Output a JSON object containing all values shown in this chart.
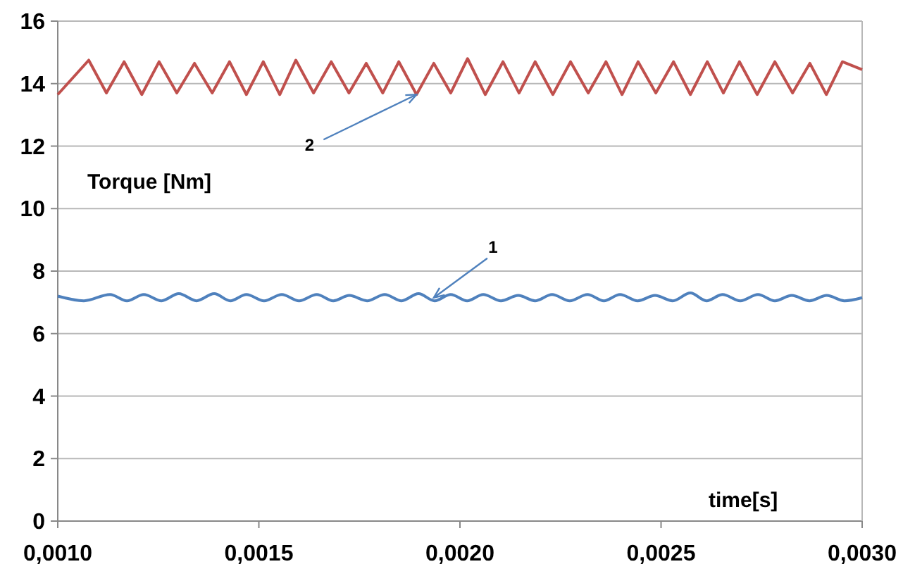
{
  "chart_data": {
    "type": "line",
    "ylabel": "Torque [Nm]",
    "xlabel": "time[s]",
    "xlim": [
      0.001,
      0.003
    ],
    "ylim": [
      0,
      16
    ],
    "xticks": [
      {
        "value": 0.001,
        "label": "0,0010"
      },
      {
        "value": 0.0015,
        "label": "0,0015"
      },
      {
        "value": 0.002,
        "label": "0,0020"
      },
      {
        "value": 0.0025,
        "label": "0,0025"
      },
      {
        "value": 0.003,
        "label": "0,0030"
      }
    ],
    "yticks": [
      0,
      2,
      4,
      6,
      8,
      10,
      12,
      14,
      16
    ],
    "grid": "y",
    "line_style": "solid",
    "marker": "none",
    "series": [
      {
        "color": "#c0504d",
        "x": [
          0.001,
          0.001077,
          0.001121,
          0.001165,
          0.001209,
          0.001252,
          0.001296,
          0.00134,
          0.001384,
          0.001427,
          0.001469,
          0.001511,
          0.001552,
          0.001592,
          0.001636,
          0.00168,
          0.001724,
          0.001767,
          0.001808,
          0.001848,
          0.001892,
          0.001935,
          0.001977,
          0.002019,
          0.002063,
          0.002107,
          0.002147,
          0.002187,
          0.002231,
          0.002275,
          0.002319,
          0.002363,
          0.002403,
          0.002443,
          0.002487,
          0.002531,
          0.002573,
          0.002615,
          0.002655,
          0.002695,
          0.002739,
          0.002783,
          0.002827,
          0.00287,
          0.002911,
          0.002951,
          0.003
        ],
        "values": [
          13.65,
          14.75,
          13.7,
          14.7,
          13.65,
          14.7,
          13.7,
          14.65,
          13.7,
          14.7,
          13.65,
          14.7,
          13.65,
          14.75,
          13.7,
          14.7,
          13.7,
          14.65,
          13.7,
          14.7,
          13.65,
          14.65,
          13.7,
          14.8,
          13.65,
          14.7,
          13.7,
          14.7,
          13.65,
          14.7,
          13.7,
          14.7,
          13.65,
          14.7,
          13.7,
          14.7,
          13.65,
          14.7,
          13.7,
          14.7,
          13.65,
          14.7,
          13.7,
          14.65,
          13.65,
          14.7,
          14.45
        ]
      },
      {
        "color": "#4f81bd",
        "x": [
          0.001,
          0.001065,
          0.00113,
          0.001172,
          0.001214,
          0.001258,
          0.001301,
          0.001345,
          0.001389,
          0.001429,
          0.001469,
          0.001513,
          0.001557,
          0.0016,
          0.001644,
          0.001685,
          0.001725,
          0.001769,
          0.001813,
          0.001855,
          0.001897,
          0.001937,
          0.001977,
          0.002018,
          0.002058,
          0.002102,
          0.002145,
          0.002187,
          0.002229,
          0.002273,
          0.002317,
          0.002358,
          0.002398,
          0.002442,
          0.002485,
          0.002529,
          0.002573,
          0.002613,
          0.002653,
          0.002697,
          0.002741,
          0.002783,
          0.002825,
          0.002869,
          0.002912,
          0.002956,
          0.003
        ],
        "values": [
          7.2,
          7.05,
          7.25,
          7.05,
          7.25,
          7.05,
          7.28,
          7.05,
          7.28,
          7.05,
          7.25,
          7.05,
          7.25,
          7.05,
          7.25,
          7.05,
          7.22,
          7.05,
          7.25,
          7.05,
          7.28,
          7.05,
          7.25,
          7.05,
          7.25,
          7.05,
          7.22,
          7.05,
          7.25,
          7.05,
          7.25,
          7.05,
          7.25,
          7.05,
          7.22,
          7.05,
          7.3,
          7.05,
          7.25,
          7.05,
          7.25,
          7.05,
          7.22,
          7.05,
          7.22,
          7.05,
          7.15
        ]
      }
    ],
    "annotations": [
      {
        "text": "1",
        "x": 0.001935,
        "y": 7.15
      },
      {
        "text": "2",
        "x": 0.001892,
        "y": 13.65
      }
    ]
  }
}
